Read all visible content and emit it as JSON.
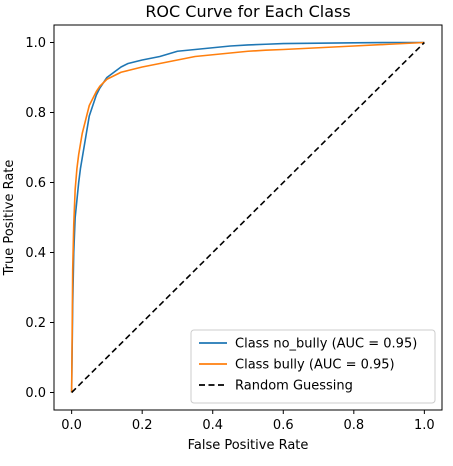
{
  "chart_data": {
    "type": "line",
    "title": "ROC Curve for Each Class",
    "xlabel": "False Positive Rate",
    "ylabel": "True Positive Rate",
    "xlim": [
      -0.05,
      1.05
    ],
    "ylim": [
      -0.05,
      1.05
    ],
    "xticks": [
      "0.0",
      "0.2",
      "0.4",
      "0.6",
      "0.8",
      "1.0"
    ],
    "yticks": [
      "0.0",
      "0.2",
      "0.4",
      "0.6",
      "0.8",
      "1.0"
    ],
    "grid": false,
    "legend_position": "lower-right",
    "series": [
      {
        "name": "Class no_bully (AUC = 0.95)",
        "color": "#1f77b4",
        "style": "solid",
        "x": [
          0.0,
          0.003,
          0.006,
          0.01,
          0.015,
          0.02,
          0.025,
          0.03,
          0.04,
          0.05,
          0.06,
          0.07,
          0.08,
          0.09,
          0.1,
          0.12,
          0.14,
          0.16,
          0.18,
          0.2,
          0.25,
          0.3,
          0.35,
          0.4,
          0.45,
          0.5,
          0.55,
          0.6,
          0.7,
          0.8,
          0.9,
          1.0
        ],
        "y": [
          0.0,
          0.25,
          0.4,
          0.5,
          0.55,
          0.6,
          0.64,
          0.67,
          0.73,
          0.79,
          0.82,
          0.85,
          0.87,
          0.885,
          0.9,
          0.915,
          0.93,
          0.94,
          0.945,
          0.95,
          0.96,
          0.975,
          0.98,
          0.985,
          0.99,
          0.993,
          0.995,
          0.997,
          0.998,
          0.999,
          1.0,
          1.0
        ]
      },
      {
        "name": "Class bully (AUC = 0.95)",
        "color": "#ff7f0e",
        "style": "solid",
        "x": [
          0.0,
          0.003,
          0.006,
          0.01,
          0.015,
          0.02,
          0.025,
          0.03,
          0.04,
          0.05,
          0.06,
          0.07,
          0.08,
          0.09,
          0.1,
          0.12,
          0.14,
          0.16,
          0.18,
          0.2,
          0.25,
          0.3,
          0.35,
          0.4,
          0.45,
          0.5,
          0.55,
          0.6,
          0.7,
          0.8,
          0.9,
          1.0
        ],
        "y": [
          0.0,
          0.35,
          0.48,
          0.58,
          0.64,
          0.68,
          0.71,
          0.74,
          0.78,
          0.82,
          0.84,
          0.86,
          0.875,
          0.885,
          0.895,
          0.905,
          0.915,
          0.92,
          0.925,
          0.93,
          0.94,
          0.95,
          0.96,
          0.965,
          0.97,
          0.975,
          0.978,
          0.98,
          0.985,
          0.99,
          0.995,
          1.0
        ]
      },
      {
        "name": "Random Guessing",
        "color": "#000000",
        "style": "dashed",
        "x": [
          0,
          1
        ],
        "y": [
          0,
          1
        ]
      }
    ]
  }
}
